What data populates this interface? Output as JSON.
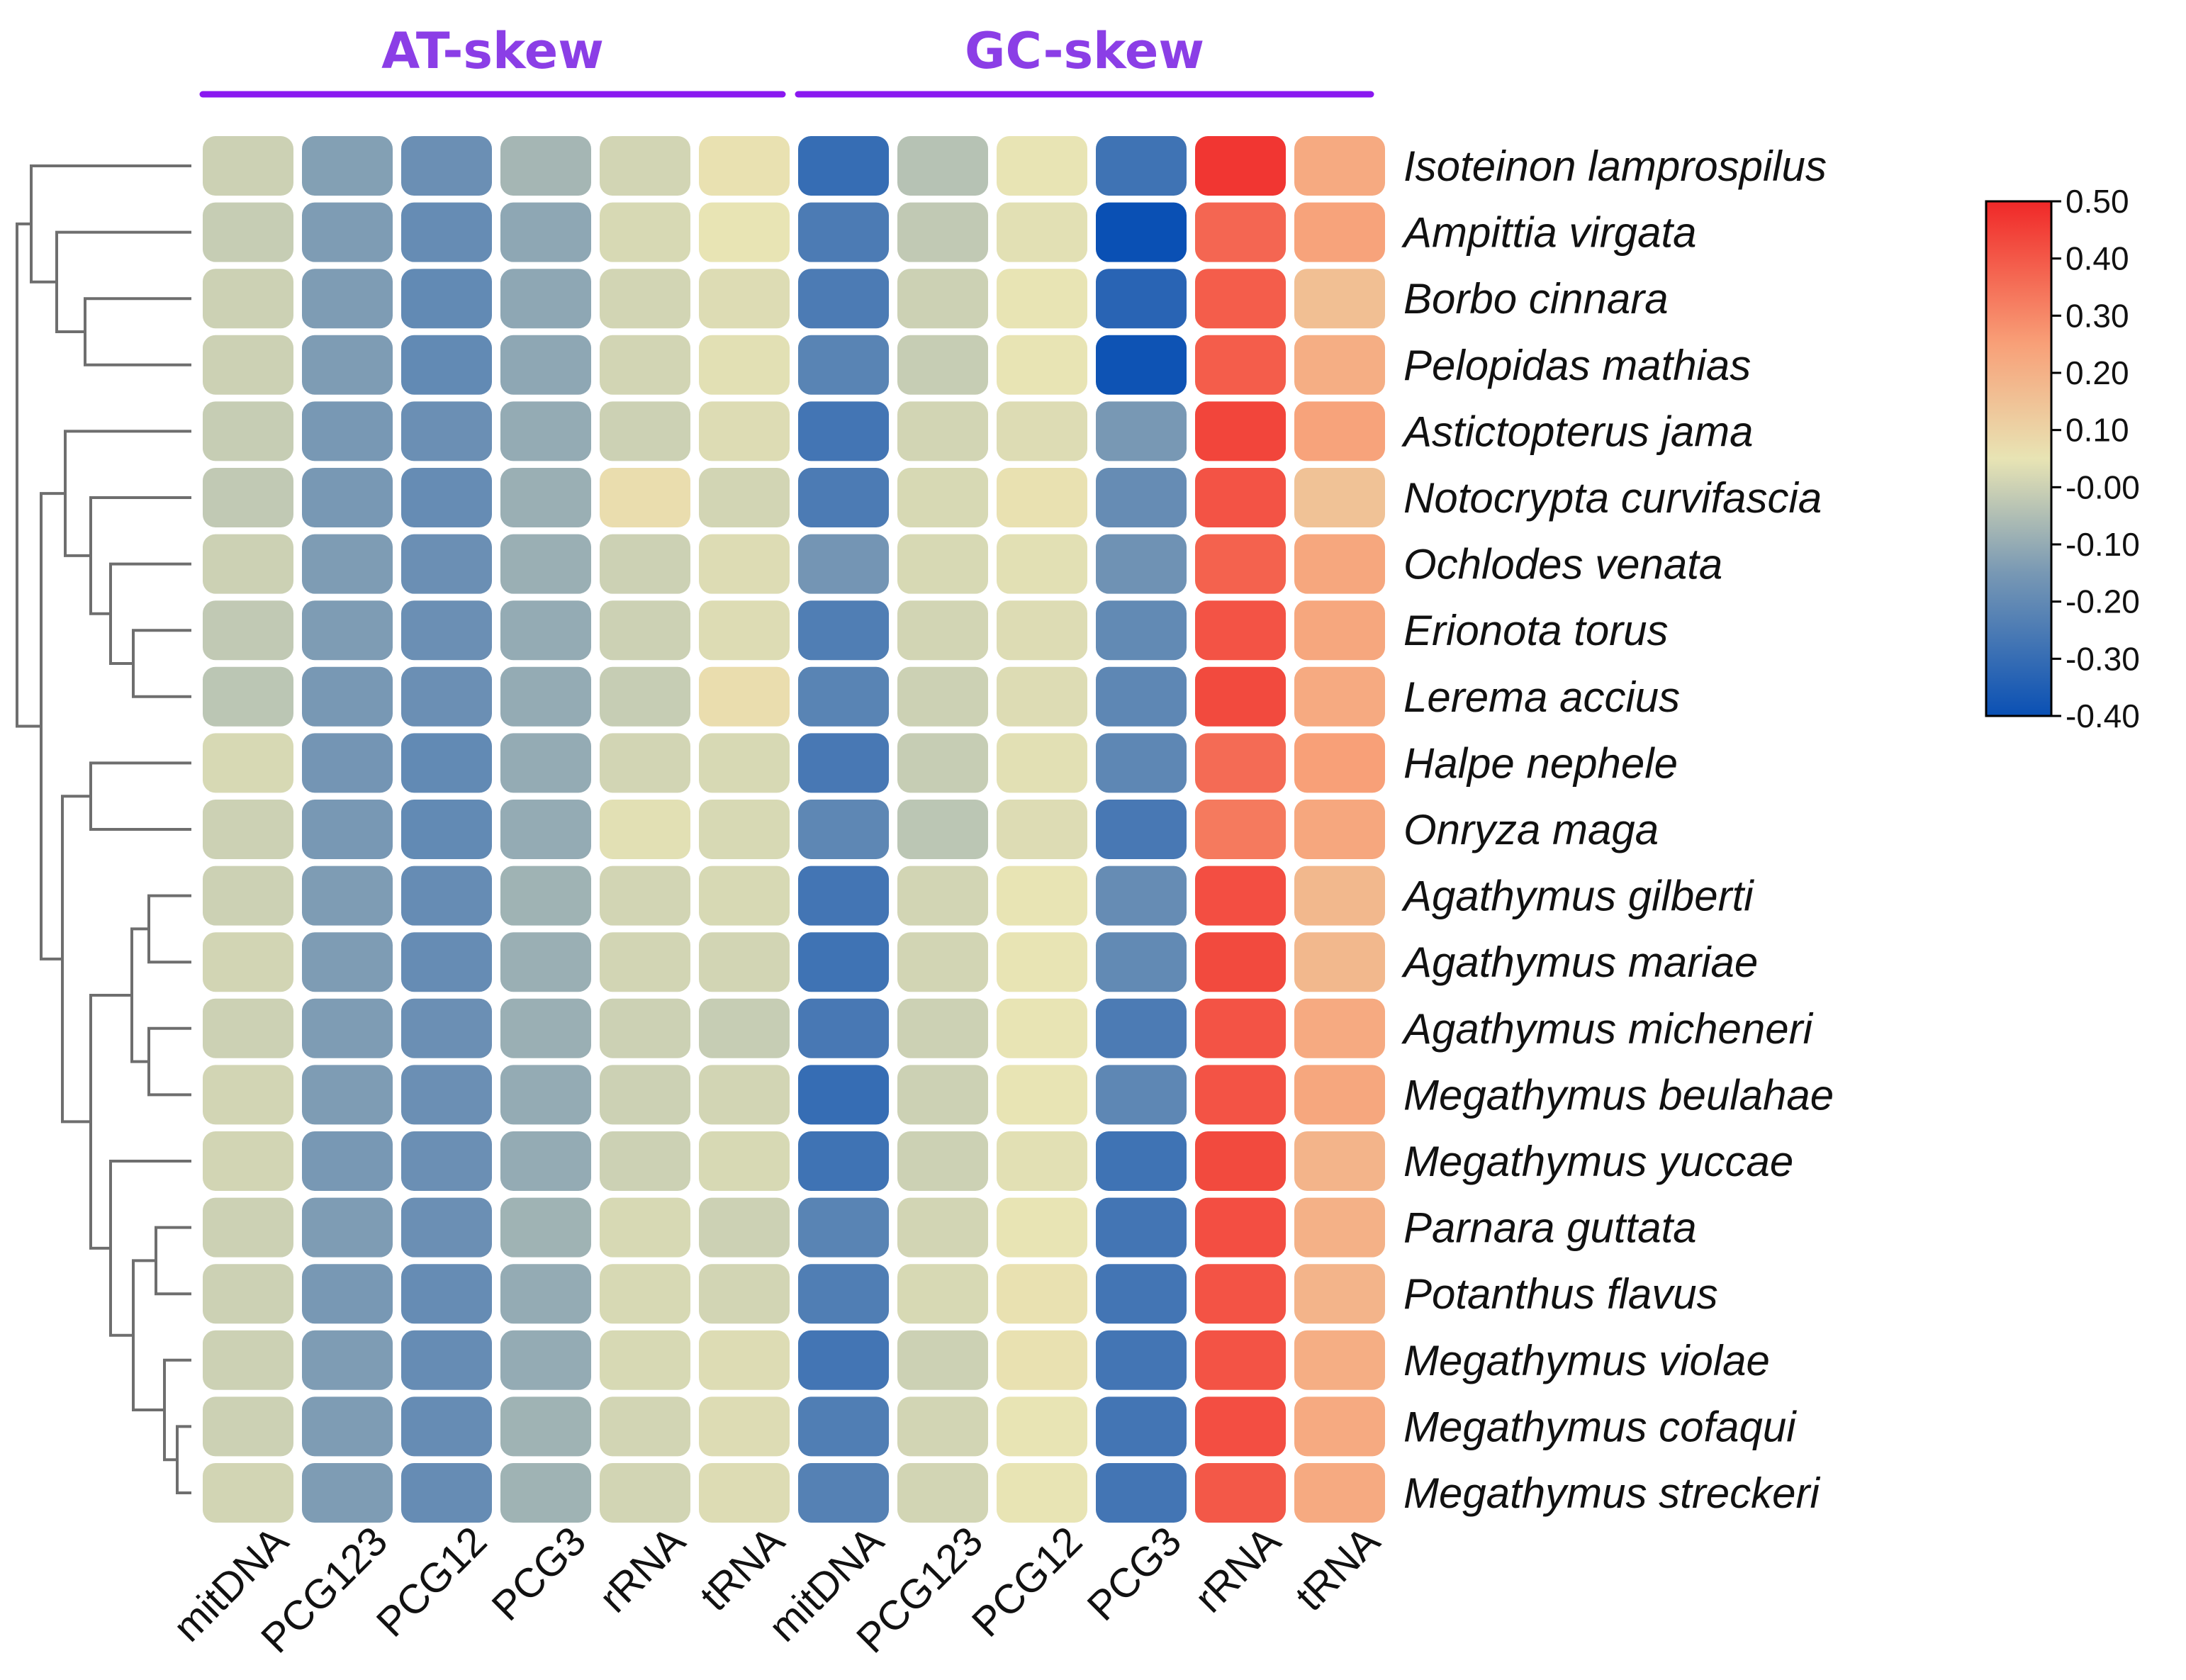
{
  "chart_data": {
    "type": "heatmap",
    "groups": [
      {
        "name": "AT-skew",
        "columns": [
          "mitDNA",
          "PCG123",
          "PCG12",
          "PCG3",
          "rRNA",
          "tRNA"
        ]
      },
      {
        "name": "GC-skew",
        "columns": [
          "mitDNA",
          "PCG123",
          "PCG12",
          "PCG3",
          "rRNA",
          "tRNA"
        ]
      }
    ],
    "rows": [
      "Isoteinon lamprospilus",
      "Ampittia virgata",
      "Borbo cinnara",
      "Pelopidas mathias",
      "Astictopterus jama",
      "Notocrypta curvifascia",
      "Ochlodes venata",
      "Erionota torus",
      "Lerema accius",
      "Halpe nephele",
      "Onryza maga",
      "Agathymus gilberti",
      "Agathymus mariae",
      "Agathymus micheneri",
      "Megathymus beulahae",
      "Megathymus yuccae",
      "Parnara guttata",
      "Potanthus flavus",
      "Megathymus violae",
      "Megathymus cofaqui",
      "Megathymus streckeri"
    ],
    "values": [
      [
        0.0,
        -0.13,
        -0.18,
        -0.07,
        0.01,
        0.06,
        -0.3,
        -0.04,
        0.05,
        -0.28,
        0.47,
        0.22
      ],
      [
        -0.01,
        -0.14,
        -0.19,
        -0.11,
        0.02,
        0.05,
        -0.25,
        -0.02,
        0.04,
        -0.4,
        0.37,
        0.24
      ],
      [
        0.0,
        -0.14,
        -0.2,
        -0.11,
        0.01,
        0.03,
        -0.25,
        0.0,
        0.05,
        -0.33,
        0.39,
        0.16
      ],
      [
        0.0,
        -0.14,
        -0.2,
        -0.11,
        0.01,
        0.04,
        -0.22,
        -0.01,
        0.05,
        -0.39,
        0.39,
        0.21
      ],
      [
        -0.01,
        -0.15,
        -0.18,
        -0.1,
        0.0,
        0.03,
        -0.27,
        0.01,
        0.03,
        -0.15,
        0.44,
        0.24
      ],
      [
        -0.02,
        -0.15,
        -0.19,
        -0.09,
        0.07,
        0.01,
        -0.25,
        0.02,
        0.06,
        -0.19,
        0.41,
        0.15
      ],
      [
        0.0,
        -0.14,
        -0.18,
        -0.09,
        0.0,
        0.03,
        -0.16,
        0.02,
        0.04,
        -0.17,
        0.38,
        0.23
      ],
      [
        -0.02,
        -0.14,
        -0.18,
        -0.1,
        0.0,
        0.03,
        -0.24,
        0.01,
        0.03,
        -0.2,
        0.41,
        0.23
      ],
      [
        -0.03,
        -0.15,
        -0.18,
        -0.1,
        -0.01,
        0.07,
        -0.22,
        0.0,
        0.03,
        -0.21,
        0.43,
        0.22
      ],
      [
        0.02,
        -0.16,
        -0.2,
        -0.1,
        0.01,
        0.02,
        -0.26,
        -0.01,
        0.04,
        -0.21,
        0.36,
        0.25
      ],
      [
        0.0,
        -0.15,
        -0.2,
        -0.1,
        0.04,
        0.02,
        -0.21,
        -0.03,
        0.03,
        -0.26,
        0.33,
        0.23
      ],
      [
        0.0,
        -0.14,
        -0.19,
        -0.08,
        0.01,
        0.02,
        -0.27,
        0.01,
        0.05,
        -0.19,
        0.42,
        0.18
      ],
      [
        0.01,
        -0.14,
        -0.19,
        -0.09,
        0.01,
        0.01,
        -0.28,
        0.01,
        0.05,
        -0.2,
        0.43,
        0.18
      ],
      [
        0.0,
        -0.14,
        -0.18,
        -0.09,
        0.0,
        -0.01,
        -0.26,
        0.0,
        0.05,
        -0.25,
        0.41,
        0.22
      ],
      [
        0.01,
        -0.14,
        -0.18,
        -0.1,
        0.0,
        0.01,
        -0.3,
        0.0,
        0.05,
        -0.21,
        0.41,
        0.23
      ],
      [
        0.01,
        -0.15,
        -0.18,
        -0.1,
        0.0,
        0.02,
        -0.28,
        0.0,
        0.04,
        -0.28,
        0.43,
        0.19
      ],
      [
        0.0,
        -0.14,
        -0.18,
        -0.08,
        0.02,
        0.0,
        -0.22,
        0.01,
        0.05,
        -0.27,
        0.42,
        0.2
      ],
      [
        0.0,
        -0.15,
        -0.19,
        -0.1,
        0.02,
        0.01,
        -0.24,
        0.02,
        0.06,
        -0.27,
        0.41,
        0.19
      ],
      [
        0.0,
        -0.14,
        -0.19,
        -0.1,
        0.02,
        0.03,
        -0.27,
        0.0,
        0.06,
        -0.27,
        0.41,
        0.21
      ],
      [
        0.0,
        -0.14,
        -0.19,
        -0.08,
        0.01,
        0.03,
        -0.24,
        0.01,
        0.05,
        -0.27,
        0.42,
        0.22
      ],
      [
        0.01,
        -0.14,
        -0.19,
        -0.08,
        0.01,
        0.03,
        -0.23,
        0.01,
        0.05,
        -0.27,
        0.4,
        0.22
      ]
    ],
    "colorbar": {
      "min": -0.4,
      "max": 0.5,
      "ticks": [
        0.5,
        0.4,
        0.3,
        0.2,
        0.1,
        0.0,
        -0.1,
        -0.2,
        -0.3,
        -0.4
      ],
      "tick_labels": [
        "0.50",
        "0.40",
        "0.30",
        "0.20",
        "0.10",
        "-0.00",
        "-0.10",
        "-0.20",
        "-0.30",
        "-0.40"
      ],
      "colors": [
        "#0a50b4",
        "#7898b4",
        "#e8e4b4",
        "#f8a078",
        "#f02828"
      ],
      "color_stops": [
        -0.4,
        -0.15,
        0.05,
        0.25,
        0.5
      ]
    },
    "legend_placement": "right",
    "dendrogram": "left"
  }
}
